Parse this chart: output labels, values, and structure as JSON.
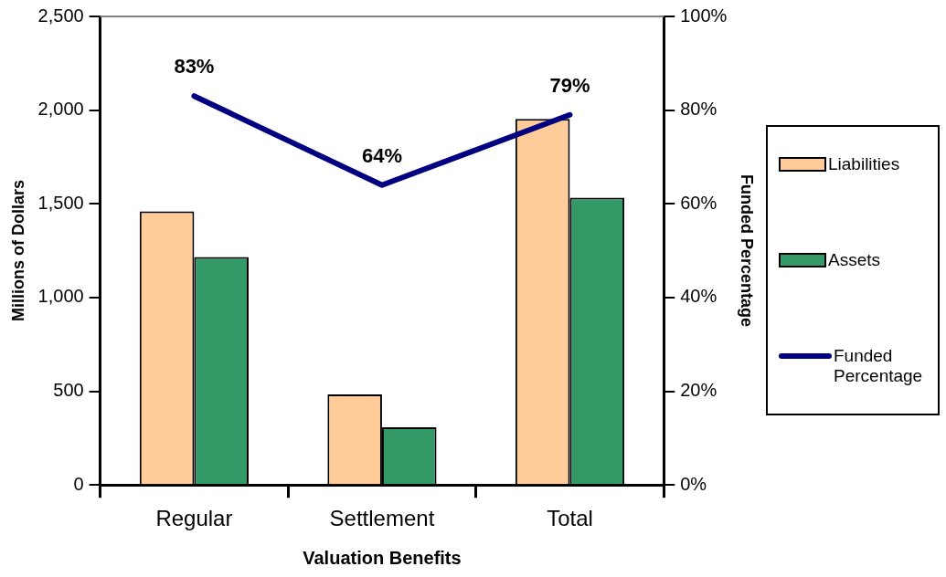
{
  "chart_data": {
    "type": "bar",
    "xlabel": "Valuation Benefits",
    "ylabel": "Millions of Dollars",
    "y2label": "Funded Percentage",
    "categories": [
      "Regular",
      "Settlement",
      "Total"
    ],
    "series": [
      {
        "name": "Liabilities",
        "color": "#ffcc99",
        "values": [
          1460,
          483,
          1953
        ]
      },
      {
        "name": "Assets",
        "color": "#339966",
        "values": [
          1216,
          308,
          1533
        ]
      },
      {
        "name": "Funded Percentage",
        "type": "line",
        "axis": "y2",
        "color": "#000080",
        "values": [
          83,
          64,
          79
        ],
        "value_labels": [
          "83%",
          "64%",
          "79%"
        ]
      }
    ],
    "ylim": [
      0,
      2500
    ],
    "yticks": [
      {
        "value": 0,
        "label": "0"
      },
      {
        "value": 500,
        "label": "500"
      },
      {
        "value": 1000,
        "label": "1,000"
      },
      {
        "value": 1500,
        "label": "1,500"
      },
      {
        "value": 2000,
        "label": "2,000"
      },
      {
        "value": 2500,
        "label": "2,500"
      }
    ],
    "y2lim": [
      0,
      100
    ],
    "y2ticks": [
      {
        "value": 0,
        "label": "0%"
      },
      {
        "value": 20,
        "label": "20%"
      },
      {
        "value": 40,
        "label": "40%"
      },
      {
        "value": 60,
        "label": "60%"
      },
      {
        "value": 80,
        "label": "80%"
      },
      {
        "value": 100,
        "label": "100%"
      }
    ],
    "legend": "right",
    "marker": "none"
  }
}
